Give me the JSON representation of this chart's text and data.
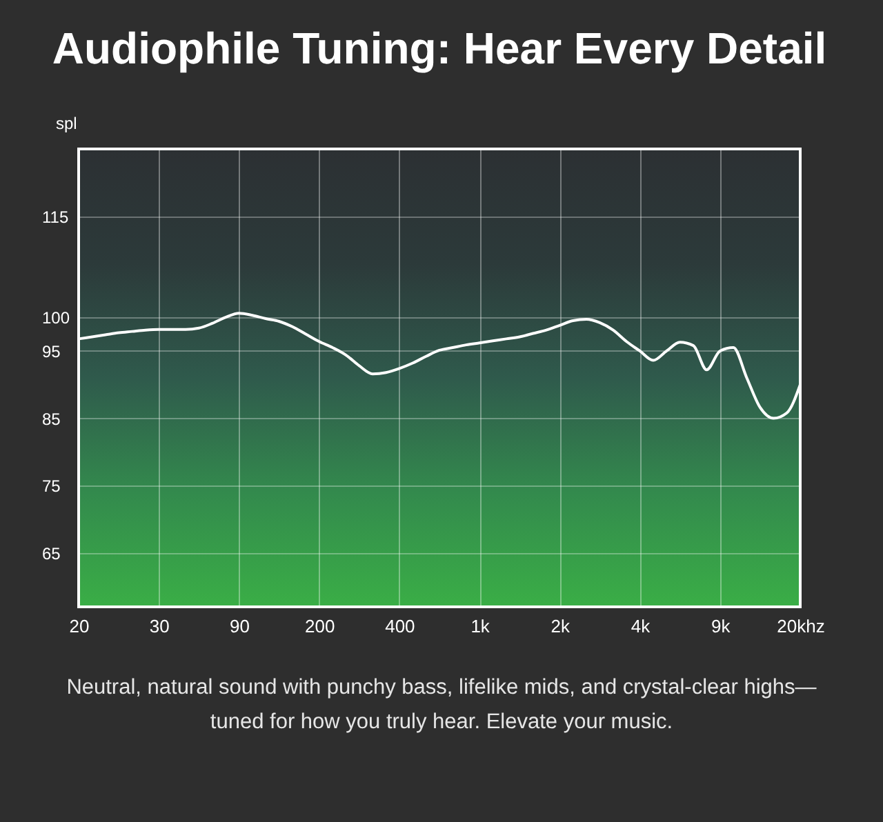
{
  "chart_data": {
    "type": "line",
    "title": "Audiophile Tuning: Hear Every Detail",
    "ylabel": "spl",
    "annotations": [
      "Neutral, natural sound with punchy bass, lifelike mids, and crystal-clear highs—tuned for how you truly hear. Elevate your music."
    ],
    "categories": [
      "20",
      null,
      null,
      null,
      null,
      null,
      "30",
      null,
      null,
      null,
      null,
      null,
      "90",
      null,
      null,
      null,
      null,
      null,
      "200",
      null,
      null,
      null,
      null,
      null,
      "400",
      null,
      null,
      null,
      null,
      null,
      "1k",
      null,
      null,
      null,
      null,
      null,
      "2k",
      null,
      null,
      null,
      null,
      null,
      "4k",
      null,
      null,
      null,
      null,
      null,
      "9k",
      null,
      null,
      null,
      null,
      null,
      "20khz"
    ],
    "series": [
      {
        "color": "#ffffff",
        "values": [
          96.8,
          97.1,
          97.4,
          97.7,
          97.9,
          98.1,
          98.2,
          98.2,
          98.2,
          98.4,
          99.1,
          100,
          100.6,
          100.3,
          99.8,
          99.4,
          98.6,
          97.5,
          96.4,
          95.5,
          94.4,
          92.8,
          91.6,
          91.8,
          92.4,
          93.2,
          94.2,
          95.1,
          95.5,
          95.9,
          96.2,
          96.5,
          96.8,
          97.1,
          97.6,
          98.1,
          98.8,
          99.5,
          99.7,
          99.2,
          98.1,
          96.4,
          95,
          93.6,
          95,
          96.3,
          95.8,
          92.2,
          95,
          95.5,
          91,
          86.6,
          85,
          85.8,
          90
        ]
      }
    ],
    "ylim": [
      57,
      125
    ],
    "yticks": [
      65,
      75,
      85,
      95,
      100,
      115
    ],
    "grid": true
  }
}
